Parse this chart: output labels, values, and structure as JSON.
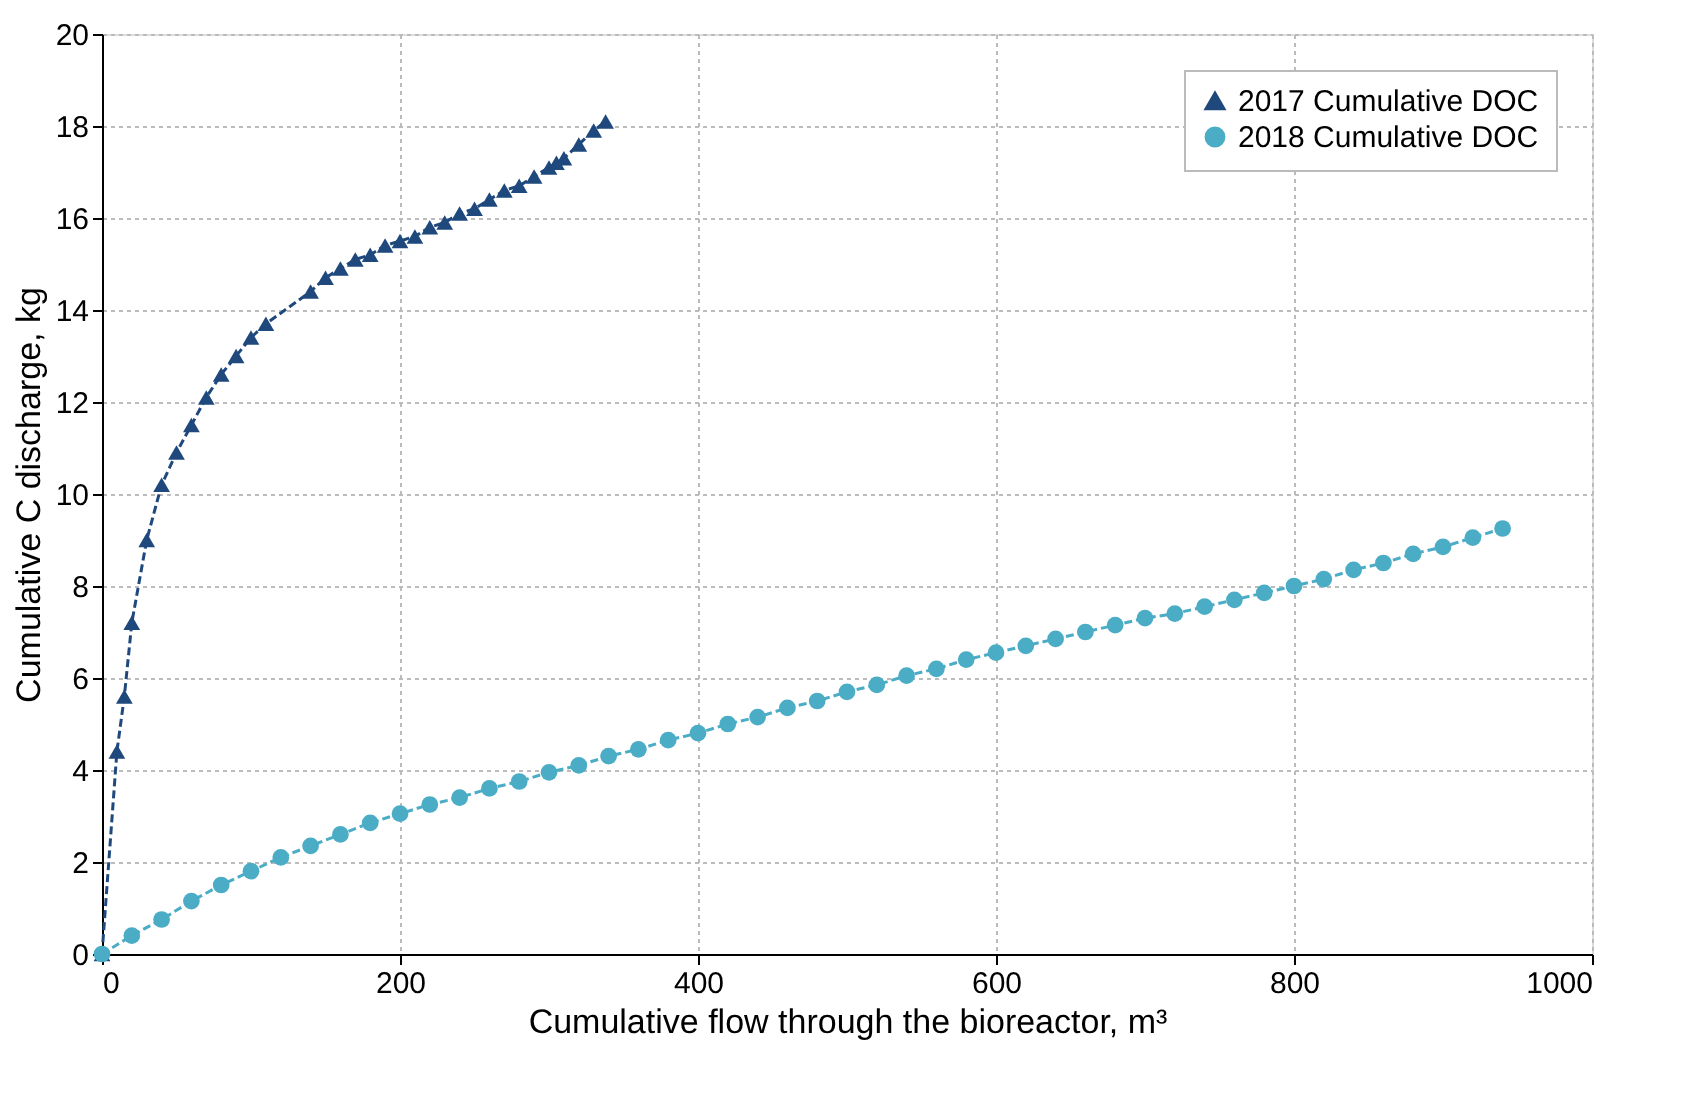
{
  "chart_data": {
    "type": "line",
    "xlabel": "Cumulative flow through the bioreactor, m³",
    "ylabel": "Cumulative C discharge, kg",
    "xlim": [
      0,
      1000
    ],
    "ylim": [
      0,
      20
    ],
    "xticks": [
      0,
      200,
      400,
      600,
      800,
      1000
    ],
    "yticks": [
      0,
      2,
      4,
      6,
      8,
      10,
      12,
      14,
      16,
      18,
      20
    ],
    "grid": true,
    "legend": "top right",
    "line_style": "dashed",
    "series": [
      {
        "name": "2017 Cumulative DOC",
        "color": "#1f497d",
        "marker": "triangle",
        "x": [
          0,
          10,
          15,
          20,
          30,
          40,
          50,
          60,
          70,
          80,
          90,
          100,
          110,
          140,
          150,
          160,
          170,
          180,
          190,
          200,
          210,
          220,
          230,
          240,
          250,
          260,
          270,
          280,
          290,
          300,
          305,
          310,
          320,
          330,
          338
        ],
        "values": [
          0,
          4.4,
          5.6,
          7.2,
          9.0,
          10.2,
          10.9,
          11.5,
          12.1,
          12.6,
          13.0,
          13.4,
          13.7,
          14.4,
          14.7,
          14.9,
          15.1,
          15.2,
          15.4,
          15.5,
          15.6,
          15.8,
          15.9,
          16.1,
          16.2,
          16.4,
          16.6,
          16.7,
          16.9,
          17.1,
          17.2,
          17.3,
          17.6,
          17.9,
          18.1
        ]
      },
      {
        "name": "2018 Cumulative DOC",
        "color": "#4bacc6",
        "marker": "circle",
        "x": [
          0,
          20,
          40,
          60,
          80,
          100,
          120,
          140,
          160,
          180,
          200,
          220,
          240,
          260,
          280,
          300,
          320,
          340,
          360,
          380,
          400,
          420,
          440,
          460,
          480,
          500,
          520,
          540,
          560,
          580,
          600,
          620,
          640,
          660,
          680,
          700,
          720,
          740,
          760,
          780,
          800,
          820,
          840,
          860,
          880,
          900,
          920,
          940
        ],
        "values": [
          0,
          0.4,
          0.75,
          1.15,
          1.5,
          1.8,
          2.1,
          2.35,
          2.6,
          2.85,
          3.05,
          3.25,
          3.4,
          3.6,
          3.75,
          3.95,
          4.1,
          4.3,
          4.45,
          4.65,
          4.8,
          5.0,
          5.15,
          5.35,
          5.5,
          5.7,
          5.85,
          6.05,
          6.2,
          6.4,
          6.55,
          6.7,
          6.85,
          7.0,
          7.15,
          7.3,
          7.4,
          7.55,
          7.7,
          7.85,
          8.0,
          8.15,
          8.35,
          8.5,
          8.7,
          8.85,
          9.05,
          9.25
        ]
      }
    ]
  }
}
